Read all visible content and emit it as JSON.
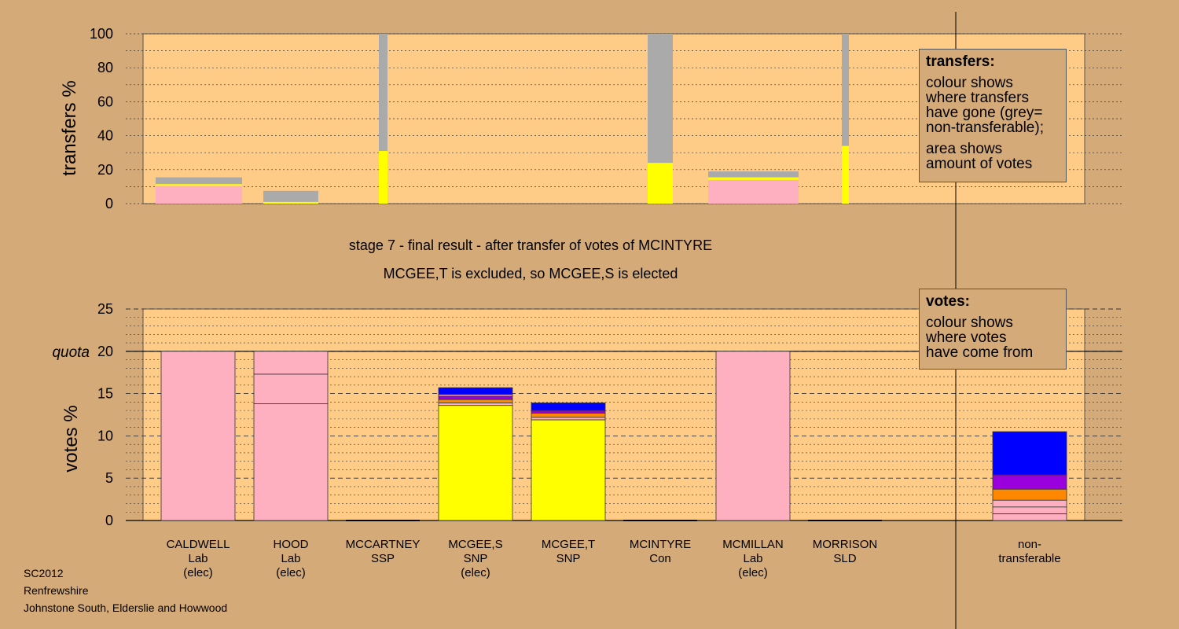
{
  "title_line1": "stage 7 - final result - after transfer of votes of MCINTYRE",
  "title_line2": "MCGEE,T is excluded, so MCGEE,S is elected",
  "footer": {
    "line1": "SC2012",
    "line2": "Renfrewshire",
    "line3": "Johnstone South, Elderslie and Howwood"
  },
  "legend_transfers": {
    "title": "transfers:",
    "text1": "colour shows\nwhere transfers\nhave gone (grey=\nnon-transferable);",
    "text2": "area shows\namount of votes"
  },
  "legend_votes": {
    "title": "votes:",
    "text1": "colour shows\nwhere votes\nhave come from"
  },
  "quota_label": "quota",
  "colors": {
    "Lab": "#ffb0c0",
    "SNP": "#ffff00",
    "grey": "#aaaaaa",
    "purple": "#9900dd",
    "orange": "#ff8800",
    "blue": "#0000ff",
    "plot_bg": "#ffcc88",
    "page_bg": "#d4aa78"
  },
  "chart_data": [
    {
      "type": "bar",
      "ylabel": "transfers %",
      "ylim": [
        0,
        100
      ],
      "yticks": [
        0,
        20,
        40,
        60,
        80,
        100
      ],
      "bars": [
        {
          "candidate": "CALDWELL",
          "segments": [
            {
              "color": "#ffb0c0",
              "value": 10.5
            },
            {
              "color": "#ffff00",
              "value": 1.0
            },
            {
              "color": "#aaaaaa",
              "value": 4.0
            }
          ]
        },
        {
          "candidate": "HOOD",
          "segments": [
            {
              "color": "#ffff00",
              "value": 1.0
            },
            {
              "color": "#aaaaaa",
              "value": 6.5
            }
          ]
        },
        {
          "candidate": "MCCARTNEY",
          "segments": [
            {
              "color": "#ffff00",
              "value": 31
            },
            {
              "color": "#aaaaaa",
              "value": 69
            }
          ]
        },
        {
          "candidate": "MCINTYRE",
          "segments": [
            {
              "color": "#ffff00",
              "value": 24
            },
            {
              "color": "#aaaaaa",
              "value": 76
            }
          ]
        },
        {
          "candidate": "MCMILLAN",
          "segments": [
            {
              "color": "#ffb0c0",
              "value": 14
            },
            {
              "color": "#ffff00",
              "value": 1.5
            },
            {
              "color": "#aaaaaa",
              "value": 3.5
            }
          ]
        },
        {
          "candidate": "MORRISON",
          "segments": [
            {
              "color": "#ffff00",
              "value": 34
            },
            {
              "color": "#aaaaaa",
              "value": 66
            }
          ]
        }
      ]
    },
    {
      "type": "bar",
      "ylabel": "votes %",
      "ylim": [
        0,
        25
      ],
      "yticks": [
        0,
        5,
        10,
        15,
        20,
        25
      ],
      "quota": 20,
      "candidates": [
        {
          "name": "CALDWELL",
          "party": "Lab",
          "status": "(elec)",
          "segments": [
            {
              "color": "#ffb0c0",
              "value": 20
            }
          ]
        },
        {
          "name": "HOOD",
          "party": "Lab",
          "status": "(elec)",
          "segments": [
            {
              "color": "#ffb0c0",
              "value": 13.8
            },
            {
              "color": "#ffb0c0",
              "value": 3.5
            },
            {
              "color": "#ffb0c0",
              "value": 2.7
            }
          ]
        },
        {
          "name": "MCCARTNEY",
          "party": "SSP",
          "status": "",
          "segments": []
        },
        {
          "name": "MCGEE,S",
          "party": "SNP",
          "status": "(elec)",
          "segments": [
            {
              "color": "#ffff00",
              "value": 13.6
            },
            {
              "color": "#ffb0c0",
              "value": 0.3
            },
            {
              "color": "#ff8800",
              "value": 0.4
            },
            {
              "color": "#9900dd",
              "value": 0.4
            },
            {
              "color": "#ffb0c0",
              "value": 0.2
            },
            {
              "color": "#0000ff",
              "value": 0.8
            }
          ]
        },
        {
          "name": "MCGEE,T",
          "party": "SNP",
          "status": "",
          "segments": [
            {
              "color": "#ffff00",
              "value": 11.9
            },
            {
              "color": "#ffb0c0",
              "value": 0.3
            },
            {
              "color": "#ff8800",
              "value": 0.5
            },
            {
              "color": "#9900dd",
              "value": 0.3
            },
            {
              "color": "#0000ff",
              "value": 0.9
            }
          ]
        },
        {
          "name": "MCINTYRE",
          "party": "Con",
          "status": "",
          "segments": []
        },
        {
          "name": "MCMILLAN",
          "party": "Lab",
          "status": "(elec)",
          "segments": [
            {
              "color": "#ffb0c0",
              "value": 20
            }
          ]
        },
        {
          "name": "MORRISON",
          "party": "SLD",
          "status": "",
          "segments": []
        },
        {
          "name": "non-",
          "party": "transferable",
          "status": "",
          "segments": [
            {
              "color": "#ffb0c0",
              "value": 0.8
            },
            {
              "color": "#ffb0c0",
              "value": 0.8
            },
            {
              "color": "#ffb0c0",
              "value": 0.8
            },
            {
              "color": "#ff8800",
              "value": 1.3
            },
            {
              "color": "#9900dd",
              "value": 1.7
            },
            {
              "color": "#0000ff",
              "value": 5.1
            }
          ]
        }
      ]
    }
  ]
}
